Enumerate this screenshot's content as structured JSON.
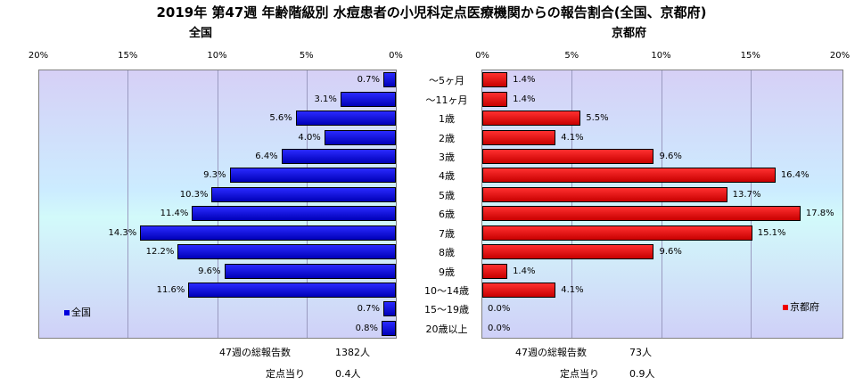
{
  "title": "2019年 第47週 年齢階級別 水痘患者の小児科定点医療機関からの報告割合(全国、京都府)",
  "chart_data": [
    {
      "type": "bar",
      "orientation": "horizontal",
      "direction": "right-to-left",
      "title": "全国",
      "categories": [
        "～5ヶ月",
        "～11ヶ月",
        "1歳",
        "2歳",
        "3歳",
        "4歳",
        "5歳",
        "6歳",
        "7歳",
        "8歳",
        "9歳",
        "10～14歳",
        "15～19歳",
        "20歳以上"
      ],
      "values": [
        0.7,
        3.1,
        5.6,
        4.0,
        6.4,
        9.3,
        10.3,
        11.4,
        14.3,
        12.2,
        9.6,
        11.6,
        0.7,
        0.8
      ],
      "value_labels": [
        "0.7%",
        "3.1%",
        "5.6%",
        "4.0%",
        "6.4%",
        "9.3%",
        "10.3%",
        "11.4%",
        "14.3%",
        "12.2%",
        "9.6%",
        "11.6%",
        "0.7%",
        "0.8%"
      ],
      "xlim": [
        0,
        20
      ],
      "ticks": [
        "20%",
        "15%",
        "10%",
        "5%",
        "0%"
      ],
      "legend": {
        "label": "全国",
        "position": "bottom-left"
      },
      "color": "#0000dd"
    },
    {
      "type": "bar",
      "orientation": "horizontal",
      "direction": "left-to-right",
      "title": "京都府",
      "categories": [
        "～5ヶ月",
        "～11ヶ月",
        "1歳",
        "2歳",
        "3歳",
        "4歳",
        "5歳",
        "6歳",
        "7歳",
        "8歳",
        "9歳",
        "10～14歳",
        "15～19歳",
        "20歳以上"
      ],
      "values": [
        1.4,
        1.4,
        5.5,
        4.1,
        9.6,
        16.4,
        13.7,
        17.8,
        15.1,
        9.6,
        1.4,
        4.1,
        0.0,
        0.0
      ],
      "value_labels": [
        "1.4%",
        "1.4%",
        "5.5%",
        "4.1%",
        "9.6%",
        "16.4%",
        "13.7%",
        "17.8%",
        "15.1%",
        "9.6%",
        "1.4%",
        "4.1%",
        "0.0%",
        "0.0%"
      ],
      "xlim": [
        0,
        20
      ],
      "ticks": [
        "0%",
        "5%",
        "10%",
        "15%",
        "20%"
      ],
      "legend": {
        "label": "京都府",
        "position": "bottom-right"
      },
      "color": "#ee0000"
    }
  ],
  "footer": {
    "left": {
      "total_label": "47週の総報告数",
      "total_value": "1382人",
      "per_label": "定点当り",
      "per_value": "0.4人"
    },
    "right": {
      "total_label": "47週の総報告数",
      "total_value": "73人",
      "per_label": "定点当り",
      "per_value": "0.9人"
    }
  }
}
